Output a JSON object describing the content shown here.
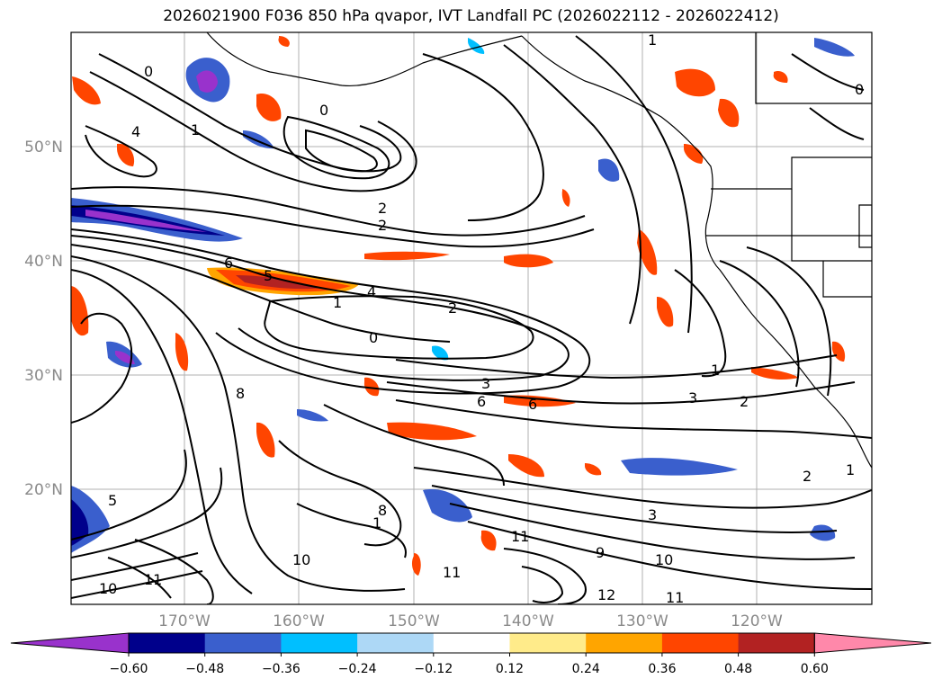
{
  "title": "2026021900 F036 850 hPa qvapor, IVT Landfall PC (2026022112 - 2026022412)",
  "map": {
    "lon_labels": [
      "170°W",
      "160°W",
      "150°W",
      "140°W",
      "130°W",
      "120°W"
    ],
    "lat_labels": [
      "50°N",
      "40°N",
      "30°N",
      "20°N"
    ],
    "contour_labels": [
      "0",
      "0",
      "0",
      "1",
      "1",
      "1",
      "1",
      "1",
      "2",
      "2",
      "2",
      "2",
      "2",
      "3",
      "3",
      "3",
      "4",
      "4",
      "5",
      "5",
      "6",
      "6",
      "6",
      "8",
      "8",
      "9",
      "10",
      "10",
      "10",
      "11",
      "11",
      "11",
      "11",
      "12",
      "1",
      "0"
    ]
  },
  "colorbar": {
    "labels": [
      "−0.60",
      "−0.48",
      "−0.36",
      "−0.24",
      "−0.12",
      "0.12",
      "0.24",
      "0.36",
      "0.48",
      "0.60"
    ],
    "colors": [
      "#9932cc",
      "#00008b",
      "#3a5fcd",
      "#00bfff",
      "#add8f6",
      "#ffffff",
      "#ffeb8a",
      "#ffa500",
      "#ff4500",
      "#b22222",
      "#ff88aa"
    ]
  }
}
